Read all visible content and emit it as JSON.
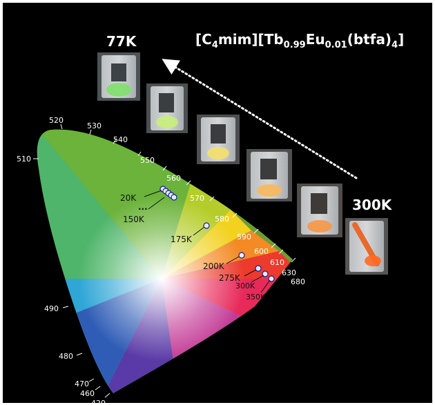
{
  "title": {
    "prefix": "[C",
    "sub1": "4",
    "mid1": "mim][Tb",
    "sub2": "0.99",
    "mid2": "Eu",
    "sub3": "0.01",
    "mid3": "(btfa)",
    "sub4": "4",
    "suffix": "]"
  },
  "temperature_endpoints": {
    "low": "77K",
    "high": "300K"
  },
  "wavelength_ticks": [
    "420",
    "460",
    "470",
    "480",
    "490",
    "510",
    "520",
    "530",
    "540",
    "550",
    "560",
    "570",
    "580",
    "590",
    "600",
    "610",
    "630",
    "680"
  ],
  "temperature_points": [
    "20K",
    "150K",
    "175K",
    "200K",
    "275K",
    "300K",
    "350K"
  ],
  "ellipsis": "..."
}
